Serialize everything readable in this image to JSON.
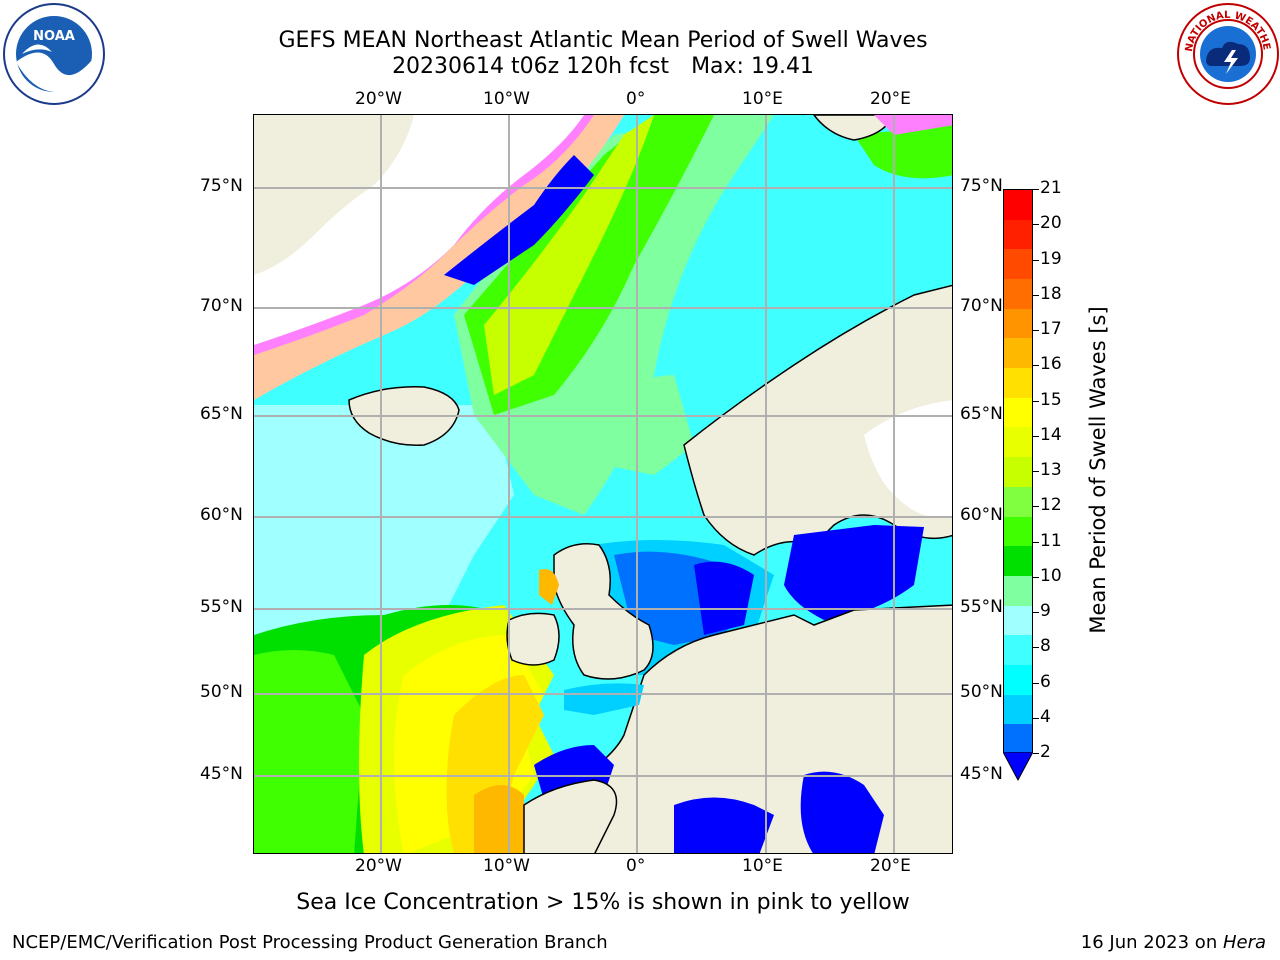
{
  "header": {
    "title_line1": "GEFS MEAN Northeast Atlantic Mean Period of Swell Waves",
    "run_info": "20230614 t06z 120h fcst",
    "max_label": "Max: 19.41"
  },
  "logos": {
    "left_name": "NOAA",
    "right_name": "NATIONAL WEATHER SERVICE"
  },
  "map": {
    "lon_labels": [
      "20°W",
      "10°W",
      "0°",
      "10°E",
      "20°E"
    ],
    "lat_labels_left": [
      "75°N",
      "70°N",
      "65°N",
      "60°N",
      "55°N",
      "50°N",
      "45°N"
    ],
    "lat_labels_right": [
      "75°N",
      "70°N",
      "65°N",
      "60°N",
      "55°N",
      "50°N",
      "45°N"
    ]
  },
  "colorbar": {
    "label": "Mean Period of Swell Waves [s]",
    "ticks": [
      "21",
      "20",
      "19",
      "18",
      "17",
      "16",
      "15",
      "14",
      "13",
      "12",
      "11",
      "10",
      "9",
      "8",
      "6",
      "4",
      "2"
    ],
    "colors": [
      "#ff0000",
      "#ff2000",
      "#ff4a00",
      "#ff6e00",
      "#ff9400",
      "#ffb800",
      "#ffe000",
      "#ffff00",
      "#e8ff00",
      "#c8ff00",
      "#80ff40",
      "#40ff00",
      "#00e000",
      "#80ffa0",
      "#a0ffff",
      "#40ffff",
      "#00ffff",
      "#00d0ff",
      "#0070ff"
    ],
    "under_color": "#0000ff"
  },
  "note": "Sea Ice Concentration > 15% is shown in pink to yellow",
  "footer": {
    "left": "NCEP/EMC/Verification Post Processing Product Generation Branch",
    "right_date": "16 Jun 2023 on ",
    "right_host": "Hera"
  }
}
